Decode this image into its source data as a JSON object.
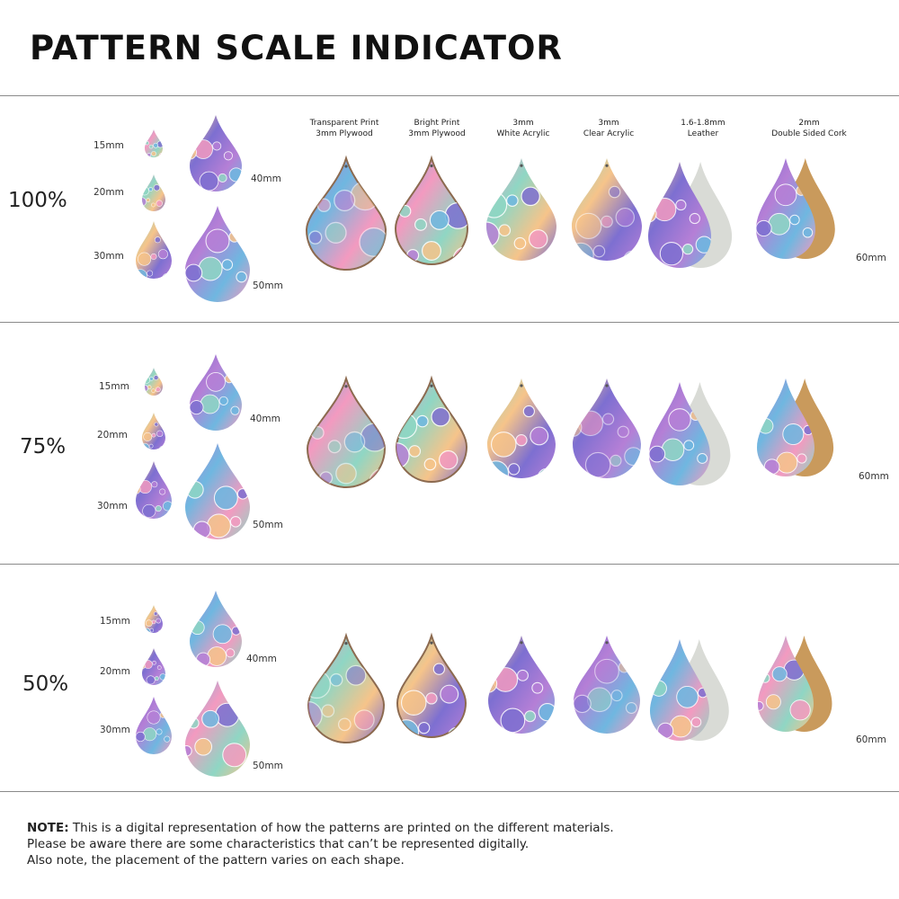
{
  "title": "PATTERN SCALE INDICATOR",
  "materials": [
    {
      "line1": "Transparent Print",
      "line2": "3mm Plywood"
    },
    {
      "line1": "Bright Print",
      "line2": "3mm Plywood"
    },
    {
      "line1": "3mm",
      "line2": "White Acrylic"
    },
    {
      "line1": "3mm",
      "line2": "Clear Acrylic"
    },
    {
      "line1": "1.6-1.8mm",
      "line2": "Leather"
    },
    {
      "line1": "2mm",
      "line2": "Double Sided Cork"
    }
  ],
  "sections": [
    {
      "scale": "100%",
      "sizes": {
        "s15": "15mm",
        "s20": "20mm",
        "s30": "30mm",
        "s40": "40mm",
        "s50": "50mm",
        "s60": "60mm"
      }
    },
    {
      "scale": "75%",
      "sizes": {
        "s15": "15mm",
        "s20": "20mm",
        "s30": "30mm",
        "s40": "40mm",
        "s50": "50mm",
        "s60": "60mm"
      }
    },
    {
      "scale": "50%",
      "sizes": {
        "s15": "15mm",
        "s20": "20mm",
        "s30": "30mm",
        "s40": "40mm",
        "s50": "50mm",
        "s60": "60mm"
      }
    }
  ],
  "note": {
    "label": "NOTE:",
    "line1": " This is a digital representation of how the patterns are printed on the different materials.",
    "line2": "Please be aware there are some characteristics that can’t be represented digitally.",
    "line3": "Also note, the placement of the pattern varies on each shape."
  },
  "colors": {
    "paisley": [
      "#b57fd6",
      "#6fb7e0",
      "#f39ac0",
      "#8fd6c4",
      "#f6c48a",
      "#7d6fd1"
    ],
    "plywood_edge": "#8c6a4f",
    "leather_back": "#d9dbd6",
    "cork_back": "#c99a5c"
  }
}
